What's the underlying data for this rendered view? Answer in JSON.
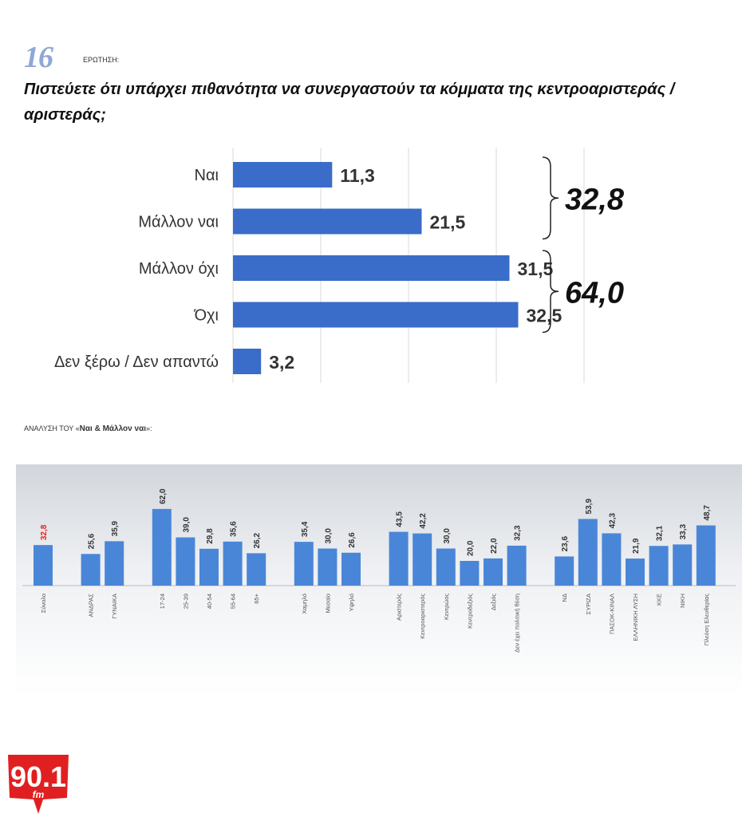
{
  "header": {
    "question_number": "16",
    "question_label": "ΕΡΩΤΗΣΗ:",
    "question_text": "Πιστεύετε ότι υπάρχει πιθανότητα να συνεργαστούν τα κόμματα της κεντροαριστεράς / αριστεράς;"
  },
  "analysis": {
    "prefix": "ΑΝΑΛΥΣΗ ΤΟΥ «",
    "emphasis": "Ναι & Μάλλον ναι",
    "suffix": "»:"
  },
  "logo": {
    "text": "90.1",
    "subtext": "fm",
    "color": "#e02020"
  },
  "chart_data": [
    {
      "type": "bar",
      "orientation": "horizontal",
      "categories": [
        "Ναι",
        "Μάλλον ναι",
        "Μάλλον όχι",
        "Όχι",
        "Δεν ξέρω / Δεν απαντώ"
      ],
      "values": [
        11.3,
        21.5,
        31.5,
        32.5,
        3.2
      ],
      "value_labels": [
        "11,3",
        "21,5",
        "31,5",
        "32,5",
        "3,2"
      ],
      "xlim": [
        0,
        40
      ],
      "grid": true,
      "color": "#3a6cc9",
      "groups": [
        {
          "members": [
            "Ναι",
            "Μάλλον ναι"
          ],
          "total_label": "32,8"
        },
        {
          "members": [
            "Μάλλον όχι",
            "Όχι"
          ],
          "total_label": "64,0"
        }
      ]
    },
    {
      "type": "bar",
      "orientation": "vertical",
      "ylim": [
        0,
        70
      ],
      "color": "#4a86d8",
      "highlight_color": "#e02020",
      "groups": [
        {
          "categories": [
            "Σύνολο"
          ],
          "values": [
            32.8
          ],
          "labels": [
            "32,8"
          ],
          "highlight": [
            true
          ]
        },
        {
          "categories": [
            "ΑΝΔΡΑΣ",
            "ΓΥΝΑΙΚΑ"
          ],
          "values": [
            25.6,
            35.9
          ],
          "labels": [
            "25,6",
            "35,9"
          ]
        },
        {
          "categories": [
            "17-24",
            "25-39",
            "40-54",
            "55-64",
            "65+"
          ],
          "values": [
            62.0,
            39.0,
            29.8,
            35.6,
            26.2
          ],
          "labels": [
            "62,0",
            "39,0",
            "29,8",
            "35,6",
            "26,2"
          ]
        },
        {
          "categories": [
            "Χαμηλό",
            "Μεσαίο",
            "Υψηλό"
          ],
          "values": [
            35.4,
            30.0,
            26.6
          ],
          "labels": [
            "35,4",
            "30,0",
            "26,6"
          ]
        },
        {
          "categories": [
            "Αριστερός",
            "Κεντροαριστερός",
            "Κεντρώος",
            "Κεντροδεξιός",
            "Δεξιός",
            "Δεν έχει πολιτική θέση"
          ],
          "values": [
            43.5,
            42.2,
            30.0,
            20.0,
            22.0,
            32.3
          ],
          "labels": [
            "43,5",
            "42,2",
            "30,0",
            "20,0",
            "22,0",
            "32,3"
          ]
        },
        {
          "categories": [
            "ΝΔ",
            "ΣΥΡΙΖΑ",
            "ΠΑΣΟΚ-ΚΙΝΑΛ",
            "ΕΛΛΗΝΙΚΗ ΛΥΣΗ",
            "ΚΚΕ",
            "ΝΙΚΗ",
            "Πλεύση Ελευθερίας"
          ],
          "values": [
            23.6,
            53.9,
            42.3,
            21.9,
            32.1,
            33.3,
            48.7
          ],
          "labels": [
            "23,6",
            "53,9",
            "42,3",
            "21,9",
            "32,1",
            "33,3",
            "48,7"
          ]
        }
      ]
    }
  ]
}
